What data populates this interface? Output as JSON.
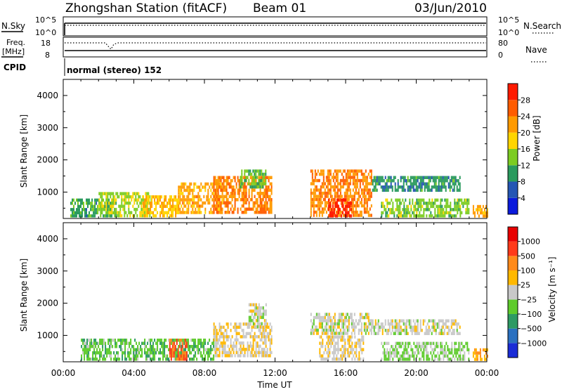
{
  "header": {
    "station": "Zhongshan Station (fitACF)",
    "beam": "Beam 01",
    "date": "03/Jun/2010"
  },
  "sky_panel": {
    "left_label": "N.Sky",
    "left_ticks": [
      "10^5",
      "10^0"
    ],
    "right_ticks": [
      "10^5",
      "10^0"
    ],
    "right_label": "N.Search"
  },
  "freq_panel": {
    "left_label_line1": "Freq.",
    "left_label_line2": "[MHz]",
    "left_ticks": [
      "18",
      "8"
    ],
    "right_ticks": [
      "80",
      "0"
    ],
    "right_label": "Nave",
    "cpid_label": "CPID",
    "cpid_text": "normal (stereo) 152"
  },
  "power_plot": {
    "ylabel": "Slant Range [km]",
    "yticks": [
      "4000",
      "3000",
      "2000",
      "1000"
    ],
    "colorbar_label": "Power [dB]",
    "colorbar_ticks": [
      "28",
      "24",
      "20",
      "16",
      "12",
      "8",
      "4"
    ],
    "colors": [
      "#0a1adc",
      "#2456b4",
      "#2a9a5e",
      "#7ccc22",
      "#ffd500",
      "#ff9a00",
      "#ff5c00",
      "#ff1a00"
    ]
  },
  "velocity_plot": {
    "ylabel": "Slant Range [km]",
    "yticks": [
      "4000",
      "3000",
      "2000",
      "1000"
    ],
    "colorbar_label": "Velocity [m s⁻¹]",
    "colorbar_ticks": [
      "1000",
      "500",
      "100",
      "25",
      "−25",
      "−100",
      "−500",
      "−1000"
    ],
    "colors": [
      "#1a2cd6",
      "#2a70c0",
      "#2e9a64",
      "#5ecb2c",
      "#c8c8c8",
      "#ffb800",
      "#ff8a1a",
      "#ff3a1a",
      "#e80000"
    ]
  },
  "xaxis": {
    "ticks": [
      "00:00",
      "04:00",
      "08:00",
      "12:00",
      "16:00",
      "20:00",
      "00:00"
    ],
    "label": "Time UT"
  },
  "chart_data": [
    {
      "type": "heatmap",
      "title": "Power",
      "xlabel": "Time UT",
      "ylabel": "Slant Range [km]",
      "xlim": [
        0,
        24
      ],
      "ylim": [
        180,
        4500
      ],
      "clim": [
        0,
        30
      ],
      "units": "dB",
      "regions": [
        {
          "t": [
            0.4,
            3.0
          ],
          "r": [
            300,
            800
          ],
          "v": 10
        },
        {
          "t": [
            2.0,
            5.0
          ],
          "r": [
            300,
            1000
          ],
          "v": 14
        },
        {
          "t": [
            4.5,
            6.5
          ],
          "r": [
            300,
            900
          ],
          "v": 18
        },
        {
          "t": [
            6.5,
            9.0
          ],
          "r": [
            400,
            1300
          ],
          "v": 20
        },
        {
          "t": [
            8.5,
            11.8
          ],
          "r": [
            400,
            1500
          ],
          "v": 22
        },
        {
          "t": [
            10.0,
            11.5
          ],
          "r": [
            1200,
            1700
          ],
          "v": 12
        },
        {
          "t": [
            14.0,
            17.5
          ],
          "r": [
            300,
            1700
          ],
          "v": 22
        },
        {
          "t": [
            15.0,
            16.3
          ],
          "r": [
            300,
            800
          ],
          "v": 28
        },
        {
          "t": [
            17.5,
            22.5
          ],
          "r": [
            1100,
            1500
          ],
          "v": 9
        },
        {
          "t": [
            18.0,
            23.0
          ],
          "r": [
            300,
            800
          ],
          "v": 13
        },
        {
          "t": [
            23.2,
            24.0
          ],
          "r": [
            250,
            600
          ],
          "v": 20
        }
      ]
    },
    {
      "type": "heatmap",
      "title": "Velocity",
      "xlabel": "Time UT",
      "ylabel": "Slant Range [km]",
      "xlim": [
        0,
        24
      ],
      "ylim": [
        180,
        4500
      ],
      "clim": [
        -1000,
        1000
      ],
      "units": "m s-1",
      "regions": [
        {
          "t": [
            1.0,
            8.5
          ],
          "r": [
            300,
            900
          ],
          "v": -250
        },
        {
          "t": [
            6.0,
            7.0
          ],
          "r": [
            300,
            900
          ],
          "v": 600
        },
        {
          "t": [
            8.5,
            11.8
          ],
          "r": [
            400,
            1400
          ],
          "v": 80
        },
        {
          "t": [
            10.5,
            11.5
          ],
          "r": [
            1300,
            2000
          ],
          "v": 0
        },
        {
          "t": [
            14.0,
            17.5
          ],
          "r": [
            1100,
            1700
          ],
          "v": 0
        },
        {
          "t": [
            14.5,
            17.0
          ],
          "r": [
            300,
            1000
          ],
          "v": 80
        },
        {
          "t": [
            17.5,
            22.5
          ],
          "r": [
            1100,
            1500
          ],
          "v": 0
        },
        {
          "t": [
            18.0,
            23.0
          ],
          "r": [
            300,
            800
          ],
          "v": -150
        },
        {
          "t": [
            23.2,
            24.0
          ],
          "r": [
            250,
            600
          ],
          "v": 300
        }
      ]
    }
  ]
}
